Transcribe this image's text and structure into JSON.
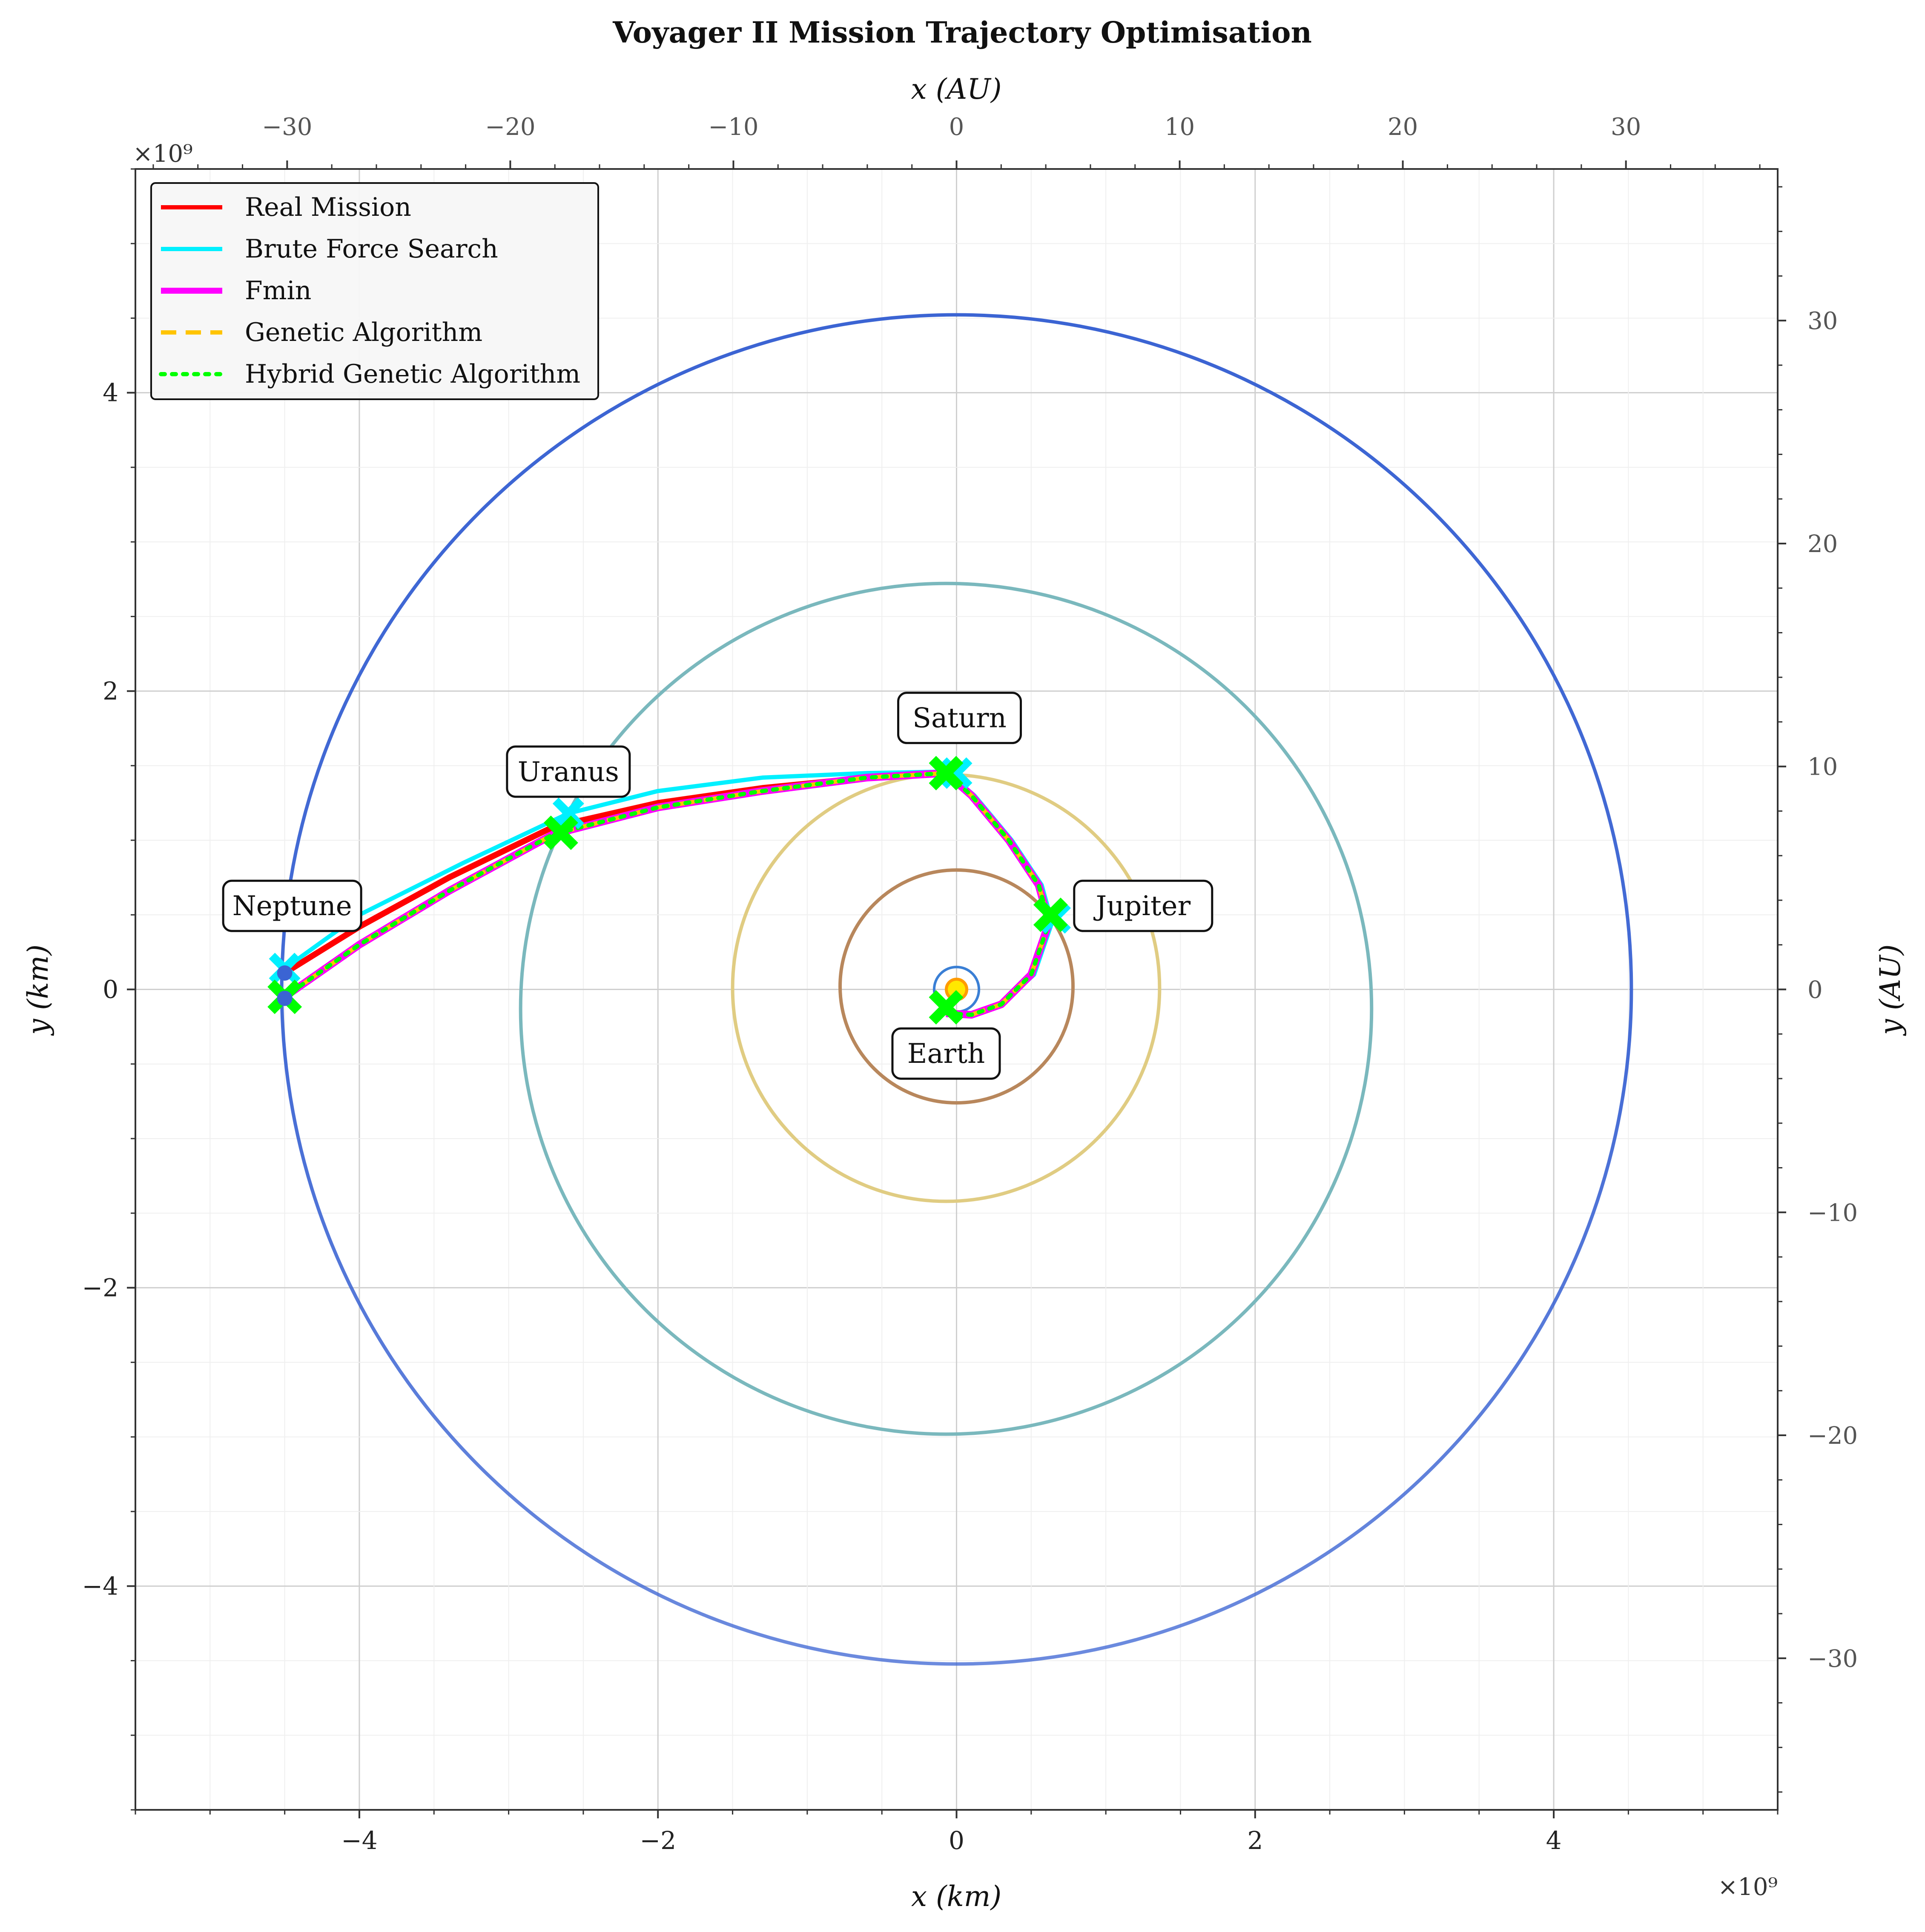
{
  "chart_data": {
    "type": "line",
    "title": "Voyager II Mission Trajectory Optimisation",
    "xlabel": "x (km)",
    "ylabel": "y (km)",
    "x2label": "x (AU)",
    "y2label": "y (AU)",
    "xlim": [
      -5.5,
      5.5
    ],
    "ylim": [
      -5.5,
      5.5
    ],
    "x2lim": [
      -36.8,
      36.8
    ],
    "y2lim": [
      -36.8,
      36.8
    ],
    "scale_note_top": "×10⁹",
    "scale_note_bottom": "×10⁹",
    "grid": true,
    "legend_position": "top-left",
    "x_ticks": [
      -4,
      -2,
      0,
      2,
      4
    ],
    "y_ticks": [
      -4,
      -2,
      0,
      2,
      4
    ],
    "x_tick_labels": [
      "−4",
      "−2",
      "0",
      "2",
      "4"
    ],
    "y_tick_labels": [
      "−4",
      "−2",
      "0",
      "2",
      "4"
    ],
    "x2_ticks": [
      -30,
      -20,
      -10,
      0,
      10,
      20,
      30
    ],
    "y2_ticks": [
      -30,
      -20,
      -10,
      0,
      10,
      20,
      30
    ],
    "x2_tick_labels": [
      "−30",
      "−20",
      "−10",
      "0",
      "10",
      "20",
      "30"
    ],
    "y2_tick_labels": [
      "−30",
      "−20",
      "−10",
      "0",
      "10",
      "20",
      "30"
    ],
    "orbits": [
      {
        "name": "Earth",
        "center": [
          0.0,
          0.0
        ],
        "radius": 0.15,
        "color": "#3a7fd5"
      },
      {
        "name": "Jupiter",
        "center": [
          0.0,
          0.02
        ],
        "radius": 0.78,
        "color": "#b8875c"
      },
      {
        "name": "Saturn",
        "center": [
          -0.07,
          0.01
        ],
        "radius": 1.43,
        "color": "#e0cc82"
      },
      {
        "name": "Uranus",
        "center": [
          -0.07,
          -0.13
        ],
        "radius": 2.85,
        "color": "#7ab8bd"
      },
      {
        "name": "Neptune",
        "center": [
          0.0,
          0.0
        ],
        "radius": 4.52,
        "color": "#3b64d3"
      }
    ],
    "sun": {
      "x": 0.0,
      "y": 0.0,
      "color": "#ffe800",
      "edge": "#ff9b00"
    },
    "planet_labels": [
      {
        "text": "Saturn",
        "x": 0.02,
        "y": 1.82
      },
      {
        "text": "Uranus",
        "x": -2.6,
        "y": 1.46
      },
      {
        "text": "Neptune",
        "x": -4.45,
        "y": 0.56
      },
      {
        "text": "Jupiter",
        "x": 1.25,
        "y": 0.56
      },
      {
        "text": "Earth",
        "x": -0.07,
        "y": -0.43
      }
    ],
    "series": [
      {
        "name": "Real Mission",
        "color": "#ff0000",
        "style": "solid",
        "x": [
          -0.07,
          0.1,
          0.3,
          0.5,
          0.62,
          0.55,
          0.35,
          0.1,
          -0.07,
          -0.6,
          -1.3,
          -2.0,
          -2.7,
          -3.4,
          -4.0,
          -4.5
        ],
        "y": [
          -0.16,
          -0.17,
          -0.1,
          0.1,
          0.45,
          0.7,
          1.0,
          1.3,
          1.45,
          1.42,
          1.35,
          1.25,
          1.09,
          0.75,
          0.42,
          0.11
        ]
      },
      {
        "name": "Brute Force Search",
        "color": "#00f0ff",
        "style": "solid",
        "x": [
          -0.07,
          0.1,
          0.3,
          0.52,
          0.64,
          0.57,
          0.37,
          0.12,
          -0.07,
          -0.6,
          -1.3,
          -2.0,
          -2.6,
          -3.3,
          -4.0,
          -4.5
        ],
        "y": [
          -0.16,
          -0.17,
          -0.1,
          0.1,
          0.45,
          0.7,
          1.0,
          1.3,
          1.46,
          1.45,
          1.42,
          1.33,
          1.18,
          0.85,
          0.5,
          0.14
        ]
      },
      {
        "name": "Fmin",
        "color": "#ff00ff",
        "style": "solid",
        "x": [
          -0.07,
          0.1,
          0.3,
          0.5,
          0.62,
          0.55,
          0.35,
          0.1,
          -0.07,
          -0.6,
          -1.3,
          -2.0,
          -2.7,
          -3.4,
          -4.0,
          -4.5
        ],
        "y": [
          -0.16,
          -0.17,
          -0.1,
          0.1,
          0.45,
          0.7,
          1.0,
          1.3,
          1.45,
          1.42,
          1.33,
          1.22,
          1.04,
          0.66,
          0.3,
          -0.05
        ]
      },
      {
        "name": "Genetic Algorithm",
        "color": "#ffc400",
        "style": "dashed",
        "x": [
          -0.07,
          0.1,
          0.3,
          0.5,
          0.62,
          0.55,
          0.35,
          0.1,
          -0.07,
          -0.6,
          -1.3,
          -2.0,
          -2.7,
          -3.4,
          -4.0,
          -4.5
        ],
        "y": [
          -0.16,
          -0.17,
          -0.1,
          0.1,
          0.45,
          0.7,
          1.0,
          1.3,
          1.45,
          1.42,
          1.33,
          1.22,
          1.04,
          0.66,
          0.3,
          -0.05
        ]
      },
      {
        "name": "Hybrid Genetic Algorithm",
        "color": "#00ff00",
        "style": "dotted",
        "x": [
          -0.07,
          0.1,
          0.3,
          0.5,
          0.62,
          0.55,
          0.35,
          0.1,
          -0.07,
          -0.6,
          -1.3,
          -2.0,
          -2.7,
          -3.4,
          -4.0,
          -4.5
        ],
        "y": [
          -0.16,
          -0.17,
          -0.1,
          0.1,
          0.45,
          0.7,
          1.0,
          1.3,
          1.45,
          1.42,
          1.33,
          1.22,
          1.04,
          0.66,
          0.3,
          -0.05
        ]
      }
    ],
    "encounter_markers": [
      {
        "label": "Earth",
        "x": -0.07,
        "y": -0.12
      },
      {
        "label": "Jupiter",
        "x": 0.63,
        "y": 0.5
      },
      {
        "label": "Saturn",
        "x": -0.07,
        "y": 1.45
      },
      {
        "label": "Uranus",
        "x": -2.65,
        "y": 1.05
      },
      {
        "label": "Neptune",
        "x": -4.5,
        "y": -0.05
      }
    ],
    "brute_force_markers": [
      {
        "x": 0.66,
        "y": 0.48
      },
      {
        "x": 0.0,
        "y": 1.45
      },
      {
        "x": -2.6,
        "y": 1.18
      },
      {
        "x": -4.5,
        "y": 0.14
      }
    ],
    "neptune_dots": [
      {
        "x": -4.5,
        "y": 0.11
      },
      {
        "x": -4.5,
        "y": -0.06
      }
    ]
  }
}
